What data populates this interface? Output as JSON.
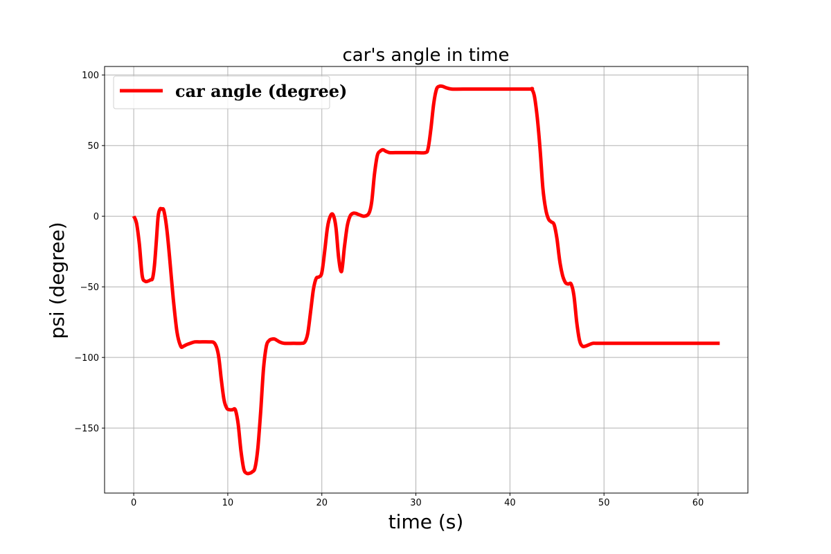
{
  "chart_data": {
    "type": "line",
    "title": "car's angle in time",
    "xlabel": "time (s)",
    "ylabel": "psi (degree)",
    "xlim": [
      -3.1,
      65.3
    ],
    "ylim": [
      -196,
      106
    ],
    "xticks": [
      0,
      10,
      20,
      30,
      40,
      50,
      60
    ],
    "yticks": [
      100,
      50,
      0,
      -50,
      -100,
      -150
    ],
    "ytick_labels": [
      "100",
      "50",
      "0",
      "−50",
      "−100",
      "−150"
    ],
    "grid": true,
    "legend_position": "top-left",
    "series": [
      {
        "name": "car angle (degree)",
        "color": "#ff0000",
        "x": [
          0,
          0.3,
          0.6,
          0.9,
          1.2,
          1.5,
          1.8,
          2.0,
          2.2,
          2.4,
          2.6,
          2.8,
          3.0,
          3.2,
          3.5,
          3.8,
          4.2,
          4.6,
          5.0,
          5.3,
          5.6,
          6.0,
          6.5,
          7.0,
          8.0,
          8.6,
          9.0,
          9.3,
          9.6,
          9.9,
          10.2,
          10.5,
          10.8,
          11.1,
          11.4,
          11.7,
          12.0,
          12.3,
          12.6,
          12.9,
          13.2,
          13.5,
          13.8,
          14.1,
          14.4,
          14.7,
          15.0,
          15.5,
          16.0,
          17.0,
          17.8,
          18.2,
          18.5,
          18.8,
          19.1,
          19.4,
          19.7,
          20.0,
          20.3,
          20.6,
          20.9,
          21.2,
          21.5,
          21.8,
          22.1,
          22.4,
          22.7,
          23.0,
          23.3,
          23.6,
          24.0,
          24.5,
          25.0,
          25.3,
          25.6,
          25.9,
          26.2,
          26.5,
          26.8,
          27.2,
          27.8,
          28.5,
          30.0,
          31.0,
          31.3,
          31.6,
          31.9,
          32.2,
          32.5,
          32.8,
          33.2,
          33.8,
          35.0,
          38.0,
          42.0,
          42.3,
          42.6,
          42.9,
          43.2,
          43.5,
          43.8,
          44.1,
          44.4,
          44.7,
          45.0,
          45.3,
          45.6,
          45.9,
          46.2,
          46.5,
          46.8,
          47.1,
          47.4,
          47.7,
          48.0,
          48.4,
          48.8,
          49.2,
          50.0,
          55.0,
          62.3
        ],
        "y": [
          0,
          -5,
          -20,
          -42,
          -46,
          -46,
          -45,
          -44,
          -35,
          -18,
          0,
          5,
          5,
          4,
          -8,
          -28,
          -58,
          -82,
          -92,
          -92,
          -91,
          -90,
          -89,
          -89,
          -89,
          -90,
          -98,
          -115,
          -130,
          -136,
          -137,
          -137,
          -137,
          -147,
          -166,
          -179,
          -182,
          -182,
          -181,
          -178,
          -164,
          -138,
          -108,
          -92,
          -88,
          -87,
          -87,
          -89,
          -90,
          -90,
          -90,
          -89,
          -83,
          -68,
          -52,
          -44,
          -43,
          -40,
          -25,
          -8,
          0,
          1,
          -8,
          -30,
          -39,
          -22,
          -7,
          0,
          2,
          2,
          1,
          0,
          2,
          10,
          30,
          43,
          46,
          47,
          46,
          45,
          45,
          45,
          45,
          45,
          48,
          62,
          80,
          90,
          92,
          92,
          91,
          90,
          90,
          90,
          90,
          90,
          85,
          70,
          48,
          20,
          5,
          -2,
          -4,
          -6,
          -16,
          -32,
          -42,
          -47,
          -48,
          -48,
          -56,
          -75,
          -88,
          -92,
          -92,
          -91,
          -90,
          -90,
          -90,
          -90,
          -90
        ]
      }
    ]
  }
}
